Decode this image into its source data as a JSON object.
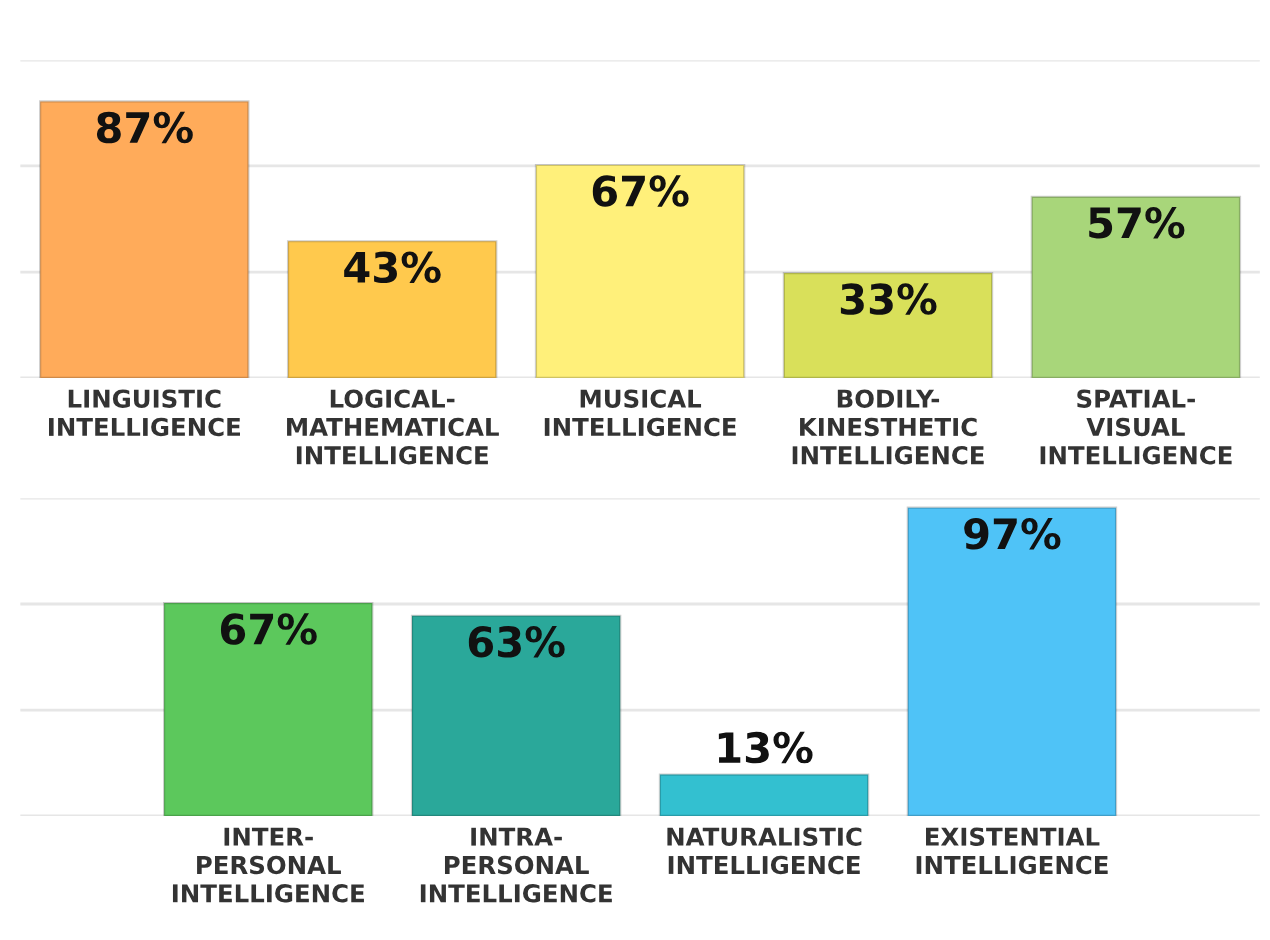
{
  "chart_data": [
    {
      "type": "bar",
      "categories": [
        "LINGUISTIC\nINTELLIGENCE",
        "LOGICAL-\nMATHEMATICAL\nINTELLIGENCE",
        "MUSICAL\nINTELLIGENCE",
        "BODILY-\nKINESTHETIC\nINTELLIGENCE",
        "SPATIAL-\nVISUAL\nINTELLIGENCE"
      ],
      "values": [
        87,
        43,
        67,
        33,
        57
      ],
      "value_labels": [
        "87%",
        "43%",
        "67%",
        "33%",
        "57%"
      ],
      "colors": [
        "#ffab5a",
        "#ffc94d",
        "#fff07a",
        "#d9e05a",
        "#a8d67a"
      ],
      "ylim": [
        0,
        100
      ],
      "yticks": [
        {
          "value": 0,
          "label": null
        },
        {
          "value": 33.3,
          "label": null
        },
        {
          "value": 66.7,
          "label": null
        },
        {
          "value": 100,
          "label": null
        }
      ],
      "grid": "y",
      "tick_labels": "x"
    },
    {
      "type": "bar",
      "categories": [
        "INTER-\nPERSONAL\nINTELLIGENCE",
        "INTRA-\nPERSONAL\nINTELLIGENCE",
        "NATURALISTIC\nINTELLIGENCE",
        "EXISTENTIAL\nINTELLIGENCE"
      ],
      "values": [
        67,
        63,
        13,
        97
      ],
      "value_labels": [
        "67%",
        "63%",
        "13%",
        "97%"
      ],
      "colors": [
        "#5cc85c",
        "#2aa89a",
        "#33c0d0",
        "#4fc3f7"
      ],
      "ylim": [
        0,
        100
      ],
      "yticks": [
        {
          "value": 0,
          "label": null
        },
        {
          "value": 33.3,
          "label": null
        },
        {
          "value": 66.7,
          "label": null
        },
        {
          "value": 100,
          "label": null
        }
      ],
      "grid": "y",
      "tick_labels": "x"
    }
  ]
}
